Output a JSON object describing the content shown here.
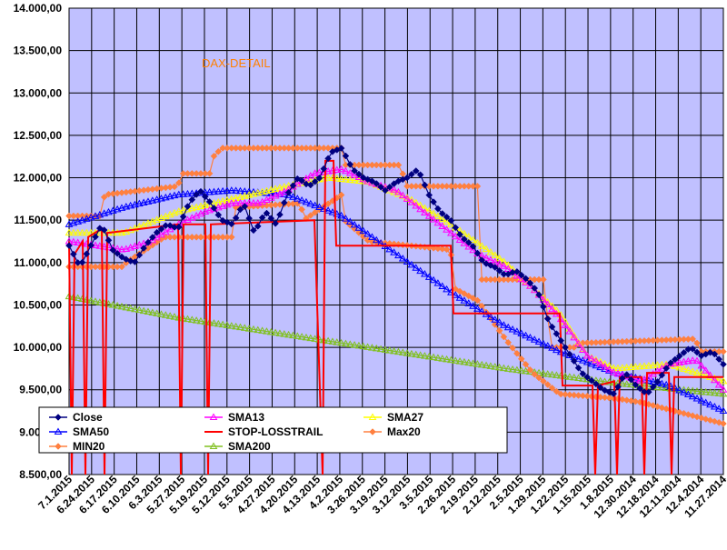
{
  "chart_data": {
    "type": "line",
    "title": "DAX-DETAIL",
    "xlabel": "",
    "ylabel": "",
    "ylim": [
      8500,
      14000
    ],
    "yticks": [
      "8.500,00",
      "9.000,00",
      "9.500,00",
      "10.000,00",
      "10.500,00",
      "11.000,00",
      "11.500,00",
      "12.000,00",
      "12.500,00",
      "13.000,00",
      "13.500,00",
      "14.000,00"
    ],
    "ytick_values": [
      8500,
      9000,
      9500,
      10000,
      10500,
      11000,
      11500,
      12000,
      12500,
      13000,
      13500,
      14000
    ],
    "xticks": [
      "7.1.2015",
      "6.24.2015",
      "6.17.2015",
      "6.10.2015",
      "6.3.2015",
      "5.27.2015",
      "5.19.2015",
      "5.12.2015",
      "5.5.2015",
      "4.27.2015",
      "4.20.2015",
      "4.13.2015",
      "4.2.2015",
      "3.26.2015",
      "3.19.2015",
      "3.12.2015",
      "3.5.2015",
      "2.26.2015",
      "2.19.2015",
      "2.12.2015",
      "2.5.2015",
      "1.29.2015",
      "1.22.2015",
      "1.15.2015",
      "1.8.2015",
      "12.30.2014",
      "12.18.2014",
      "12.11.2014",
      "12.4.2014",
      "11.27.2014"
    ],
    "grid": true,
    "legend_position": "bottom-left",
    "n_points": 150,
    "colors": {
      "plot_bg": "#c0c0ff",
      "grid": "#000000",
      "close": "#000080",
      "sma13": "#ff00ff",
      "sma27": "#ffff00",
      "sma50": "#0000ff",
      "stop": "#ff0000",
      "max20": "#ff8040",
      "min20": "#ff8040",
      "sma200": "#80c020",
      "title": "#ff8000"
    },
    "series": [
      {
        "name": "Close",
        "key": "close",
        "color": "#000080",
        "marker": "diamond",
        "anchors": [
          [
            0,
            11200
          ],
          [
            4,
            10950
          ],
          [
            8,
            11200
          ],
          [
            12,
            11450
          ],
          [
            16,
            11150
          ],
          [
            20,
            11050
          ],
          [
            24,
            11000
          ],
          [
            28,
            11200
          ],
          [
            32,
            11350
          ],
          [
            36,
            11450
          ],
          [
            40,
            11400
          ],
          [
            44,
            11700
          ],
          [
            48,
            11850
          ],
          [
            52,
            11700
          ],
          [
            56,
            11500
          ],
          [
            60,
            11450
          ],
          [
            64,
            11700
          ],
          [
            68,
            11350
          ],
          [
            72,
            11600
          ],
          [
            76,
            11450
          ],
          [
            80,
            11800
          ],
          [
            84,
            12000
          ],
          [
            88,
            11900
          ],
          [
            92,
            12000
          ],
          [
            96,
            12300
          ],
          [
            100,
            12350
          ],
          [
            104,
            12100
          ],
          [
            108,
            12000
          ],
          [
            112,
            11950
          ],
          [
            116,
            11850
          ],
          [
            120,
            11950
          ],
          [
            124,
            12000
          ],
          [
            128,
            12100
          ],
          [
            132,
            11800
          ],
          [
            136,
            11600
          ],
          [
            140,
            11500
          ],
          [
            144,
            11300
          ],
          [
            148,
            11200
          ],
          [
            152,
            11000
          ],
          [
            156,
            10950
          ],
          [
            160,
            10850
          ],
          [
            164,
            10900
          ],
          [
            168,
            10800
          ],
          [
            172,
            10650
          ],
          [
            176,
            10300
          ],
          [
            180,
            10100
          ],
          [
            184,
            9900
          ],
          [
            188,
            9700
          ],
          [
            192,
            9600
          ],
          [
            196,
            9500
          ],
          [
            200,
            9450
          ],
          [
            204,
            9700
          ],
          [
            208,
            9550
          ],
          [
            212,
            9450
          ],
          [
            216,
            9600
          ],
          [
            220,
            9800
          ],
          [
            224,
            9900
          ],
          [
            228,
            10000
          ],
          [
            232,
            9900
          ],
          [
            236,
            9950
          ],
          [
            240,
            9800
          ]
        ]
      },
      {
        "name": "SMA13",
        "key": "sma13",
        "color": "#ff00ff",
        "marker": "triangle",
        "anchors": [
          [
            0,
            11250
          ],
          [
            10,
            11200
          ],
          [
            20,
            11150
          ],
          [
            30,
            11250
          ],
          [
            40,
            11450
          ],
          [
            50,
            11600
          ],
          [
            60,
            11700
          ],
          [
            70,
            11700
          ],
          [
            80,
            11850
          ],
          [
            90,
            12050
          ],
          [
            100,
            12100
          ],
          [
            110,
            11950
          ],
          [
            120,
            11850
          ],
          [
            130,
            11600
          ],
          [
            140,
            11350
          ],
          [
            150,
            11100
          ],
          [
            160,
            10950
          ],
          [
            170,
            10700
          ],
          [
            180,
            10350
          ],
          [
            190,
            9900
          ],
          [
            200,
            9700
          ],
          [
            210,
            9600
          ],
          [
            220,
            9800
          ],
          [
            230,
            9850
          ],
          [
            240,
            9500
          ]
        ]
      },
      {
        "name": "SMA27",
        "key": "sma27",
        "color": "#ffff00",
        "marker": "triangle",
        "anchors": [
          [
            0,
            11350
          ],
          [
            20,
            11350
          ],
          [
            40,
            11600
          ],
          [
            60,
            11750
          ],
          [
            80,
            11900
          ],
          [
            95,
            12000
          ],
          [
            110,
            11950
          ],
          [
            125,
            11750
          ],
          [
            140,
            11450
          ],
          [
            160,
            11000
          ],
          [
            180,
            10400
          ],
          [
            190,
            9900
          ],
          [
            200,
            9750
          ],
          [
            220,
            9800
          ],
          [
            240,
            9600
          ]
        ]
      },
      {
        "name": "SMA50",
        "key": "sma50",
        "color": "#0000ff",
        "marker": "triangle",
        "anchors": [
          [
            0,
            11450
          ],
          [
            20,
            11650
          ],
          [
            40,
            11800
          ],
          [
            60,
            11850
          ],
          [
            80,
            11800
          ],
          [
            100,
            11550
          ],
          [
            120,
            11100
          ],
          [
            140,
            10650
          ],
          [
            160,
            10250
          ],
          [
            180,
            9950
          ],
          [
            200,
            9700
          ],
          [
            220,
            9550
          ],
          [
            240,
            9250
          ]
        ]
      },
      {
        "name": "STOP-LOSSTRAIL",
        "key": "stop",
        "color": "#ff0000",
        "marker": "none",
        "anchors": [
          [
            0,
            11250
          ],
          [
            1,
            8500
          ],
          [
            2,
            11100
          ],
          [
            5,
            11250
          ],
          [
            6,
            8500
          ],
          [
            7,
            11300
          ],
          [
            12,
            11400
          ],
          [
            13,
            8500
          ],
          [
            14,
            11350
          ],
          [
            40,
            11450
          ],
          [
            41,
            8500
          ],
          [
            42,
            11450
          ],
          [
            50,
            11450
          ],
          [
            51,
            8500
          ],
          [
            52,
            11450
          ],
          [
            90,
            11500
          ],
          [
            93,
            8500
          ],
          [
            94,
            12200
          ],
          [
            97,
            12200
          ],
          [
            98,
            11200
          ],
          [
            140,
            11200
          ],
          [
            141,
            10400
          ],
          [
            180,
            10400
          ],
          [
            181,
            9550
          ],
          [
            192,
            9550
          ],
          [
            193,
            8500
          ],
          [
            194,
            9550
          ],
          [
            200,
            9600
          ],
          [
            201,
            8500
          ],
          [
            202,
            9650
          ],
          [
            210,
            9650
          ],
          [
            211,
            8500
          ],
          [
            212,
            9700
          ],
          [
            220,
            9700
          ],
          [
            221,
            8500
          ],
          [
            222,
            9650
          ],
          [
            240,
            9650
          ]
        ]
      },
      {
        "name": "Max20",
        "key": "max20",
        "color": "#ff8040",
        "marker": "diamond",
        "anchors": [
          [
            0,
            11550
          ],
          [
            12,
            11550
          ],
          [
            13,
            11800
          ],
          [
            40,
            11900
          ],
          [
            41,
            12050
          ],
          [
            52,
            12050
          ],
          [
            53,
            12250
          ],
          [
            56,
            12350
          ],
          [
            100,
            12350
          ],
          [
            101,
            12150
          ],
          [
            122,
            12150
          ],
          [
            123,
            11900
          ],
          [
            150,
            11900
          ],
          [
            151,
            10800
          ],
          [
            175,
            10800
          ],
          [
            176,
            10000
          ],
          [
            186,
            10000
          ],
          [
            187,
            10050
          ],
          [
            230,
            10100
          ],
          [
            231,
            9950
          ],
          [
            240,
            9950
          ]
        ]
      },
      {
        "name": "MIN20",
        "key": "min20",
        "color": "#ff8040",
        "marker": "diamond",
        "anchors": [
          [
            0,
            10950
          ],
          [
            20,
            10950
          ],
          [
            21,
            11000
          ],
          [
            35,
            11300
          ],
          [
            60,
            11300
          ],
          [
            61,
            11650
          ],
          [
            85,
            11700
          ],
          [
            86,
            11500
          ],
          [
            100,
            11800
          ],
          [
            101,
            11500
          ],
          [
            110,
            11250
          ],
          [
            140,
            11150
          ],
          [
            141,
            10700
          ],
          [
            150,
            10550
          ],
          [
            160,
            10100
          ],
          [
            170,
            9700
          ],
          [
            180,
            9450
          ],
          [
            200,
            9400
          ],
          [
            210,
            9350
          ],
          [
            240,
            9100
          ]
        ]
      },
      {
        "name": "SMA200",
        "key": "sma200",
        "color": "#80c020",
        "marker": "triangle",
        "anchors": [
          [
            0,
            10600
          ],
          [
            40,
            10350
          ],
          [
            80,
            10150
          ],
          [
            120,
            9950
          ],
          [
            160,
            9750
          ],
          [
            200,
            9580
          ],
          [
            240,
            9450
          ]
        ]
      }
    ]
  }
}
